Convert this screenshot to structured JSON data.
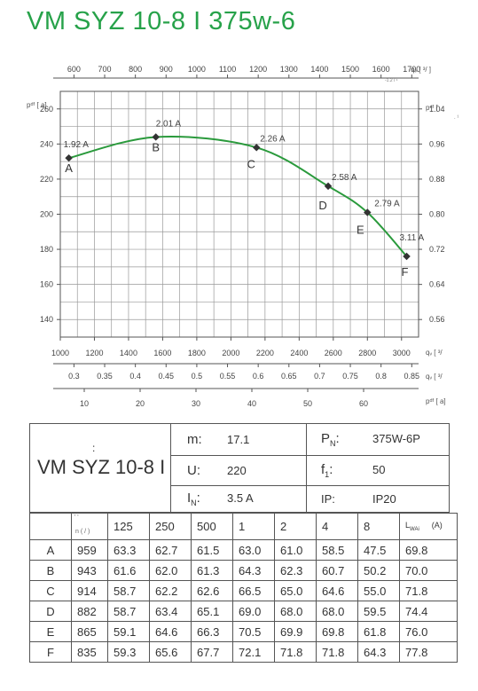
{
  "title": "VM SYZ 10-8 I 375w-6",
  "chart_data": {
    "type": "line",
    "x": [
      1050,
      1560,
      2150,
      2570,
      2800,
      3030
    ],
    "y": [
      232,
      244,
      238,
      216,
      201,
      176
    ],
    "point_labels": [
      "A",
      "B",
      "C",
      "D",
      "E",
      "F"
    ],
    "point_currents": [
      "1.92 A",
      "2.01 A",
      "2.26 A",
      "2.58 A",
      "2.79 A",
      "3.11 A"
    ],
    "xlim": [
      1000,
      3100
    ],
    "ylim": [
      130,
      270
    ],
    "top_axis": {
      "unit_label": "qᵥ [  ³/      ]",
      "sub_label": "-1.2  /  ¹",
      "ticks": [
        "600",
        "700",
        "800",
        "900",
        "1000",
        "1100",
        "1200",
        "1300",
        "1400",
        "1500",
        "1600",
        "1700"
      ]
    },
    "bottom_axis": {
      "unit_label": "qᵥ [  ³/",
      "ticks": [
        "1000",
        "1200",
        "1400",
        "1600",
        "1800",
        "2000",
        "2200",
        "2400",
        "2600",
        "2800",
        "3000"
      ]
    },
    "axis_m3s": {
      "unit_label": "qᵥ [  ³/",
      "ticks": [
        "0.3",
        "0.35",
        "0.4",
        "0.45",
        "0.5",
        "0.55",
        "0.6",
        "0.65",
        "0.7",
        "0.75",
        "0.8",
        "0.85"
      ]
    },
    "axis_pdf": {
      "unit_label": "pᵈᶠ [   a]",
      "ticks": [
        "10",
        "20",
        "30",
        "40",
        "50",
        "60"
      ]
    },
    "left_axis": {
      "unit_label": "pᵈᶠ [    a]",
      "ticks": [
        "140",
        "160",
        "180",
        "200",
        "220",
        "240",
        "260"
      ]
    },
    "right_axis": {
      "unit_label": "pᵈᶠ [",
      "unit_sub": ".   ¹",
      "ticks": [
        "0.56",
        "0.64",
        "0.72",
        "0.80",
        "0.88",
        "0.96",
        "1.04"
      ]
    },
    "grid": true,
    "colors": {
      "curve": "#2a9a3c",
      "title": "#27a24a"
    }
  },
  "spec": {
    "model": "VM SYZ 10-8 I",
    "model_mark": ":",
    "m_label": "m:",
    "m_value": "17.1",
    "pn_label": "P",
    "pn_sub": "N",
    "pn_colon": ":",
    "pn_value": "375W-6P",
    "u_label": "U:",
    "u_value": "220",
    "f_label": "f",
    "f_sub": "1",
    "f_colon": ":",
    "f_value": "50",
    "in_label": "I",
    "in_sub": "N",
    "in_colon": ":",
    "in_value": "3.5  A",
    "ip_label": "IP:",
    "ip_value": "IP20"
  },
  "table": {
    "n_header_top": "'         '",
    "n_header": "n (  /   )",
    "freq_headers": [
      "125",
      "250",
      "500",
      "1",
      "2",
      "4",
      "8"
    ],
    "lw_header": "L",
    "lw_sub": "WAi",
    "lw_unit": "(A)",
    "rows": [
      {
        "label": "A",
        "n": "959",
        "v": [
          "63.3",
          "62.7",
          "61.5",
          "63.0",
          "61.0",
          "58.5",
          "47.5"
        ],
        "lw": "69.8"
      },
      {
        "label": "B",
        "n": "943",
        "v": [
          "61.6",
          "62.0",
          "61.3",
          "64.3",
          "62.3",
          "60.7",
          "50.2"
        ],
        "lw": "70.0"
      },
      {
        "label": "C",
        "n": "914",
        "v": [
          "58.7",
          "62.2",
          "62.6",
          "66.5",
          "65.0",
          "64.6",
          "55.0"
        ],
        "lw": "71.8"
      },
      {
        "label": "D",
        "n": "882",
        "v": [
          "58.7",
          "63.4",
          "65.1",
          "69.0",
          "68.0",
          "68.0",
          "59.5"
        ],
        "lw": "74.4"
      },
      {
        "label": "E",
        "n": "865",
        "v": [
          "59.1",
          "64.6",
          "66.3",
          "70.5",
          "69.9",
          "69.8",
          "61.8"
        ],
        "lw": "76.0"
      },
      {
        "label": "F",
        "n": "835",
        "v": [
          "59.3",
          "65.6",
          "67.7",
          "72.1",
          "71.8",
          "71.8",
          "64.3"
        ],
        "lw": "77.8"
      }
    ]
  }
}
